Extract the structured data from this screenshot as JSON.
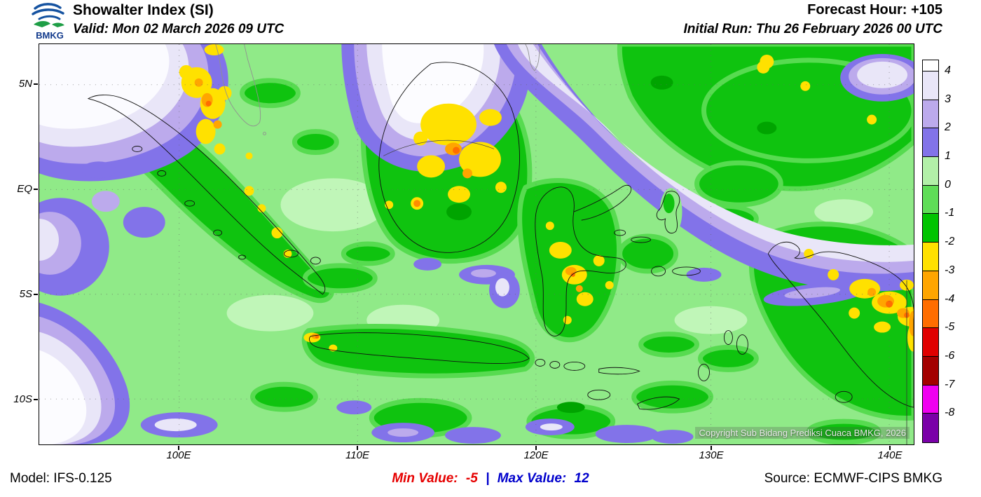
{
  "header": {
    "logo_text": "BMKG",
    "title": "Showalter Index (SI)",
    "valid_line": "Valid: Mon 02 March 2026 09 UTC",
    "forecast_hour": "Forecast Hour: +105",
    "initial_run": "Initial Run: Thu 26 February 2026 00 UTC"
  },
  "map": {
    "lat_labels": [
      "5N",
      "EQ",
      "5S",
      "10S"
    ],
    "lon_labels": [
      "100E",
      "110E",
      "120E",
      "130E",
      "140E"
    ],
    "copyright": "Copyright Sub Bidang Prediksi Cuaca BMKG, 2026"
  },
  "legend": {
    "tick_labels": [
      "4",
      "3",
      "2",
      "1",
      "0",
      "-1",
      "-2",
      "-3",
      "-4",
      "-5",
      "-6",
      "-7",
      "-8"
    ],
    "colors": [
      "#ffffff",
      "#e9e6f8",
      "#bcaaec",
      "#8273e9",
      "#b2f0a8",
      "#5fdd57",
      "#00c400",
      "#ffe100",
      "#ffa500",
      "#ff6d00",
      "#e00000",
      "#a30000",
      "#f000f0",
      "#7a00a8"
    ]
  },
  "footer": {
    "model": "Model: IFS-0.125",
    "min_label": "Min Value:",
    "min_value": "-5",
    "separator": "|",
    "max_label": "Max Value:",
    "max_value": "12",
    "source": "Source: ECMWF-CIPS BMKG"
  }
}
